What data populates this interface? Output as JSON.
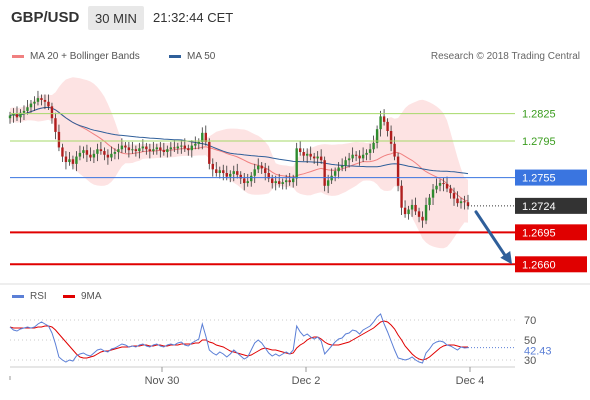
{
  "header": {
    "symbol": "GBP/USD",
    "timeframe": "30 MIN",
    "time": "21:32:44 CET"
  },
  "legend": {
    "ma20_label": "MA 20 + Bollinger Bands",
    "ma20_color": "#f08080",
    "ma50_label": "MA 50",
    "ma50_color": "#2f5f9a",
    "credit": "Research © 2018 Trading Central"
  },
  "rsi_legend": {
    "rsi_label": "RSI",
    "rsi_color": "#5b7fd6",
    "ma_label": "9MA",
    "ma_color": "#e00000"
  },
  "chart_data": {
    "type": "candlestick",
    "instrument": "GBP/USD",
    "interval": "30 MIN",
    "ylim": [
      1.2645,
      1.2875
    ],
    "x_tick_labels": [
      "Nov 30",
      "Dec 2",
      "Dec 4"
    ],
    "levels": [
      {
        "value": "1.2825",
        "kind": "resistance",
        "color": "#a6d96a"
      },
      {
        "value": "1.2795",
        "kind": "resistance",
        "color": "#a6d96a"
      },
      {
        "value": "1.2755",
        "kind": "pivot",
        "color": "#3a75e0"
      },
      {
        "value": "1.2724",
        "kind": "last",
        "color": "#333333"
      },
      {
        "value": "1.2695",
        "kind": "support",
        "color": "#e00000"
      },
      {
        "value": "1.2660",
        "kind": "support",
        "color": "#e00000"
      }
    ],
    "closes": [
      1.2823,
      1.2825,
      1.2821,
      1.2826,
      1.2828,
      1.2832,
      1.2836,
      1.2838,
      1.2842,
      1.284,
      1.2838,
      1.2833,
      1.282,
      1.2805,
      1.2788,
      1.2778,
      1.2772,
      1.2775,
      1.277,
      1.2778,
      1.2782,
      1.2785,
      1.278,
      1.2777,
      1.2781,
      1.2786,
      1.2784,
      1.278,
      1.2777,
      1.2781,
      1.2783,
      1.2786,
      1.279,
      1.2788,
      1.2785,
      1.2786,
      1.2784,
      1.2787,
      1.2789,
      1.2786,
      1.2784,
      1.2786,
      1.2788,
      1.2785,
      1.2783,
      1.2786,
      1.2788,
      1.2787,
      1.2789,
      1.279,
      1.2787,
      1.2785,
      1.279,
      1.2792,
      1.2794,
      1.2804,
      1.2794,
      1.277,
      1.2764,
      1.276,
      1.2763,
      1.276,
      1.2756,
      1.2759,
      1.2762,
      1.2758,
      1.2754,
      1.2749,
      1.2751,
      1.2757,
      1.2764,
      1.2768,
      1.2765,
      1.276,
      1.2754,
      1.2749,
      1.2751,
      1.2748,
      1.275,
      1.2752,
      1.275,
      1.2754,
      1.2787,
      1.2783,
      1.2779,
      1.2781,
      1.2778,
      1.2776,
      1.2778,
      1.2774,
      1.2746,
      1.2752,
      1.2757,
      1.2762,
      1.2766,
      1.2768,
      1.2774,
      1.2776,
      1.278,
      1.2779,
      1.2776,
      1.278,
      1.2782,
      1.2786,
      1.2793,
      1.2808,
      1.2822,
      1.2816,
      1.2806,
      1.2792,
      1.2778,
      1.2746,
      1.2722,
      1.2715,
      1.272,
      1.2725,
      1.2718,
      1.2712,
      1.2708,
      1.2725,
      1.2733,
      1.2742,
      1.2746,
      1.2749,
      1.2748,
      1.2743,
      1.2738,
      1.2732,
      1.2727,
      1.2729,
      1.2728,
      1.2724
    ],
    "rsi": {
      "ylim": [
        20,
        80
      ],
      "ticks": [
        "70",
        "50",
        "30"
      ],
      "current": "42.43",
      "values": [
        63,
        60,
        59,
        61,
        62,
        63,
        62,
        63,
        66,
        68,
        66,
        64,
        57,
        46,
        33,
        30,
        28,
        30,
        29,
        34,
        36,
        37,
        35,
        34,
        37,
        40,
        41,
        39,
        38,
        41,
        42,
        44,
        46,
        45,
        43,
        44,
        43,
        45,
        46,
        44,
        43,
        45,
        46,
        44,
        43,
        45,
        46,
        45,
        47,
        48,
        45,
        44,
        47,
        49,
        51,
        66,
        54,
        40,
        37,
        35,
        38,
        36,
        33,
        36,
        40,
        37,
        34,
        31,
        33,
        40,
        47,
        50,
        47,
        42,
        37,
        34,
        36,
        34,
        36,
        38,
        36,
        40,
        64,
        58,
        54,
        56,
        53,
        51,
        53,
        49,
        36,
        40,
        44,
        48,
        51,
        52,
        56,
        57,
        60,
        59,
        56,
        60,
        62,
        64,
        68,
        73,
        76,
        66,
        58,
        49,
        40,
        32,
        31,
        30,
        31,
        33,
        30,
        28,
        27,
        37,
        41,
        46,
        48,
        49,
        48,
        45,
        44,
        42,
        40,
        43,
        42,
        42.43
      ],
      "ma": [
        63,
        62,
        62,
        62,
        62,
        62,
        62,
        62,
        63,
        63,
        64,
        64,
        63,
        60,
        56,
        52,
        48,
        44,
        40,
        36,
        33,
        32,
        32,
        33,
        34,
        36,
        38,
        39,
        39,
        40,
        41,
        42,
        43,
        43,
        43,
        44,
        44,
        44,
        45,
        45,
        44,
        44,
        45,
        45,
        44,
        44,
        45,
        45,
        45,
        46,
        46,
        46,
        46,
        47,
        47,
        50,
        50,
        48,
        47,
        45,
        44,
        43,
        41,
        39,
        38,
        37,
        36,
        35,
        34,
        35,
        37,
        39,
        41,
        42,
        41,
        40,
        40,
        39,
        38,
        37,
        36,
        37,
        42,
        45,
        47,
        50,
        52,
        53,
        53,
        51,
        48,
        46,
        45,
        45,
        45,
        46,
        47,
        48,
        50,
        52,
        54,
        56,
        58,
        60,
        62,
        65,
        68,
        69,
        68,
        65,
        61,
        55,
        50,
        44,
        40,
        36,
        33,
        31,
        30,
        31,
        33,
        36,
        39,
        42,
        44,
        45,
        45,
        45,
        44,
        43,
        43,
        43
      ]
    }
  }
}
